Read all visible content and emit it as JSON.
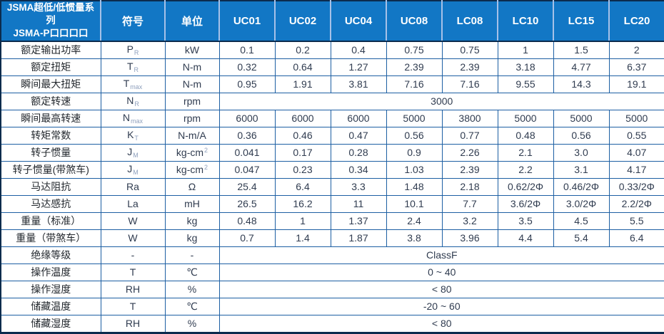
{
  "colors": {
    "header_bg": "#1277c5",
    "grid_line": "#1d5fa3",
    "outer_border": "#0b2b4d",
    "header_divider": "#a6c1e8",
    "body_text": "#303c50",
    "subscript_text": "#8fa0bd",
    "header_text": "#ffffff"
  },
  "table": {
    "header": {
      "series_line1": "JSMA超低/低惯量系列",
      "series_line2": "JSMA-P口口口口",
      "symbol_label": "符号",
      "unit_label": "单位",
      "models": [
        "UC01",
        "UC02",
        "UC04",
        "UC08",
        "LC08",
        "LC10",
        "LC15",
        "LC20"
      ]
    },
    "rows": [
      {
        "label": "额定输出功率",
        "symbol": "P",
        "symbol_sub": "R",
        "unit": "kW",
        "values": [
          "0.1",
          "0.2",
          "0.4",
          "0.75",
          "0.75",
          "1",
          "1.5",
          "2"
        ]
      },
      {
        "label": "额定扭矩",
        "symbol": "T",
        "symbol_sub": "R",
        "unit": "N-m",
        "values": [
          "0.32",
          "0.64",
          "1.27",
          "2.39",
          "2.39",
          "3.18",
          "4.77",
          "6.37"
        ]
      },
      {
        "label": "瞬间最大扭矩",
        "symbol": "T",
        "symbol_sub": "max",
        "unit": "N-m",
        "values": [
          "0.95",
          "1.91",
          "3.81",
          "7.16",
          "7.16",
          "9.55",
          "14.3",
          "19.1"
        ]
      },
      {
        "label": "额定转速",
        "symbol": "N",
        "symbol_sub": "R",
        "unit": "rpm",
        "span_value": "3000"
      },
      {
        "label": "瞬间最高转速",
        "symbol": "N",
        "symbol_sub": "max",
        "unit": "rpm",
        "values": [
          "6000",
          "6000",
          "6000",
          "5000",
          "3800",
          "5000",
          "5000",
          "5000"
        ]
      },
      {
        "label": "转矩常数",
        "symbol": "K",
        "symbol_sub": "T",
        "unit": "N-m/A",
        "values": [
          "0.36",
          "0.46",
          "0.47",
          "0.56",
          "0.77",
          "0.48",
          "0.56",
          "0.55"
        ]
      },
      {
        "label": "转子惯量",
        "symbol": "J",
        "symbol_sub": "M",
        "unit": "kg-cm",
        "unit_sup": "2",
        "values": [
          "0.041",
          "0.17",
          "0.28",
          "0.9",
          "2.26",
          "2.1",
          "3.0",
          "4.07"
        ]
      },
      {
        "label": "转子惯量(带煞车)",
        "symbol": "J",
        "symbol_sub": "M",
        "unit": "kg-cm",
        "unit_sup": "2",
        "values": [
          "0.047",
          "0.23",
          "0.34",
          "1.03",
          "2.39",
          "2.2",
          "3.1",
          "4.17"
        ]
      },
      {
        "label": "马达阻抗",
        "symbol": "Ra",
        "unit": "Ω",
        "values": [
          "25.4",
          "6.4",
          "3.3",
          "1.48",
          "2.18",
          "0.62/2Φ",
          "0.46/2Φ",
          "0.33/2Φ"
        ]
      },
      {
        "label": "马达感抗",
        "symbol": "La",
        "unit": "mH",
        "values": [
          "26.5",
          "16.2",
          "11",
          "10.1",
          "7.7",
          "3.6/2Φ",
          "3.0/2Φ",
          "2.2/2Φ"
        ]
      },
      {
        "label": "重量（标准）",
        "symbol": "W",
        "unit": "kg",
        "values": [
          "0.48",
          "1",
          "1.37",
          "2.4",
          "3.2",
          "3.5",
          "4.5",
          "5.5"
        ]
      },
      {
        "label": "重量（带煞车）",
        "symbol": "W",
        "unit": "kg",
        "values": [
          "0.7",
          "1.4",
          "1.87",
          "3.8",
          "3.96",
          "4.4",
          "5.4",
          "6.4"
        ]
      },
      {
        "label": "绝缘等级",
        "symbol": "-",
        "unit": "-",
        "span_value": "ClassF"
      },
      {
        "label": "操作温度",
        "symbol": "T",
        "unit": "℃",
        "span_value": "0 ~ 40"
      },
      {
        "label": "操作湿度",
        "symbol": "RH",
        "unit": "%",
        "span_value": "< 80"
      },
      {
        "label": "储藏温度",
        "symbol": "T",
        "unit": "℃",
        "span_value": "-20 ~ 60"
      },
      {
        "label": "储藏湿度",
        "symbol": "RH",
        "unit": "%",
        "span_value": "< 80"
      }
    ]
  }
}
